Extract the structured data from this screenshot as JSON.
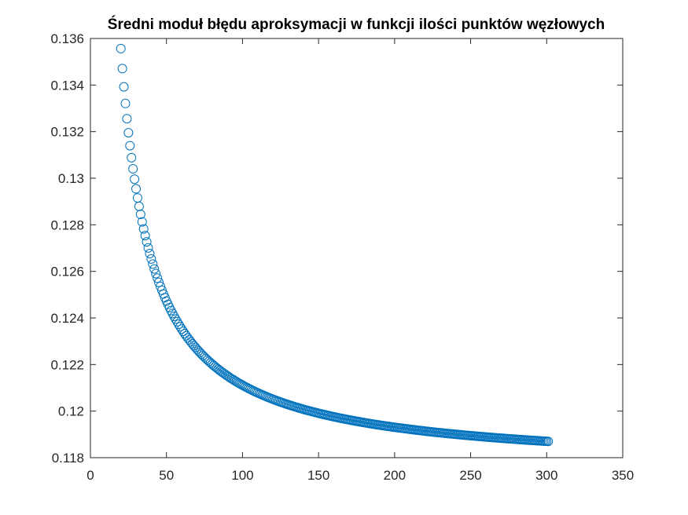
{
  "chart_data": {
    "type": "scatter",
    "title": "Średni moduł błędu aproksymacji w funkcji ilości punktów węzłowych",
    "xlabel": "",
    "ylabel": "",
    "xlim": [
      0,
      350
    ],
    "ylim": [
      0.118,
      0.136
    ],
    "x_ticks": [
      "0",
      "50",
      "100",
      "150",
      "200",
      "250",
      "300",
      "350"
    ],
    "y_ticks": [
      "0.118",
      "0.12",
      "0.122",
      "0.124",
      "0.126",
      "0.128",
      "0.13",
      "0.132",
      "0.134",
      "0.136"
    ],
    "grid": false,
    "marker": "circle-open",
    "color": "#0072BD",
    "series": [
      {
        "x_start": 20,
        "x_end": 301,
        "x_step": 1,
        "y_curve": "y = 0.1175 + 0.3613 / x  (approximate fit read from the plot)",
        "samples": [
          {
            "x": 20,
            "y": 0.1354
          },
          {
            "x": 25,
            "y": 0.1319
          },
          {
            "x": 30,
            "y": 0.1295
          },
          {
            "x": 40,
            "y": 0.1265
          },
          {
            "x": 50,
            "y": 0.1247
          },
          {
            "x": 60,
            "y": 0.1235
          },
          {
            "x": 75,
            "y": 0.1224
          },
          {
            "x": 100,
            "y": 0.1211
          },
          {
            "x": 125,
            "y": 0.1204
          },
          {
            "x": 150,
            "y": 0.1199
          },
          {
            "x": 200,
            "y": 0.1193
          },
          {
            "x": 250,
            "y": 0.1189
          },
          {
            "x": 301,
            "y": 0.1187
          }
        ]
      }
    ]
  }
}
